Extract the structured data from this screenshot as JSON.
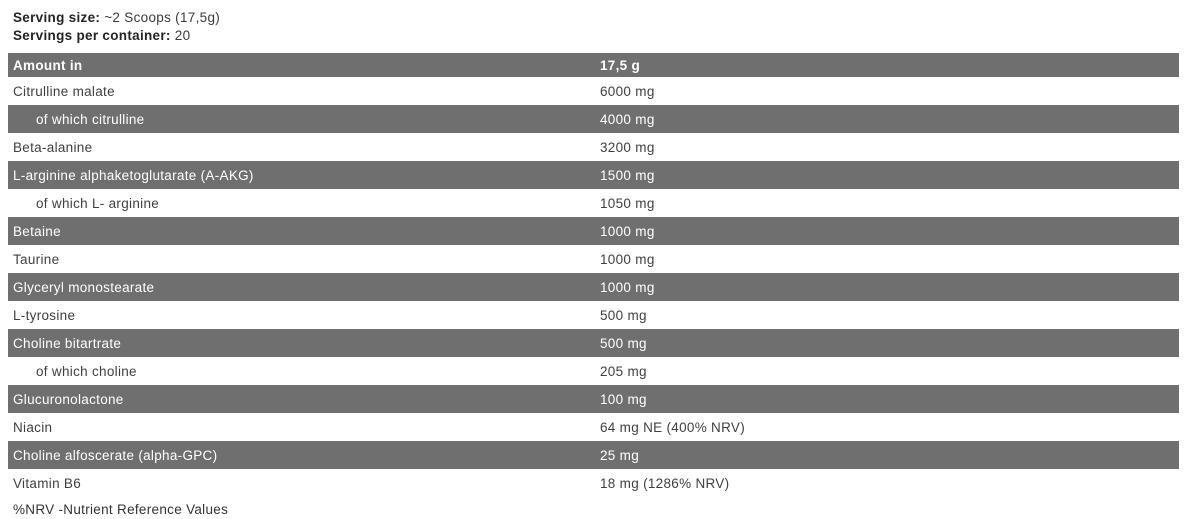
{
  "serving": {
    "serving_size_label": "Serving size:",
    "serving_size_value": "~2 Scoops (17,5g)",
    "servings_per_container_label": "Servings per container:",
    "servings_per_container_value": "20"
  },
  "table": {
    "header": {
      "label": "Amount in",
      "value": "17,5 g"
    },
    "rows": [
      {
        "label": "Citrulline malate",
        "value": "6000 mg",
        "shaded": false,
        "sub": false
      },
      {
        "label": "of which citrulline",
        "value": "4000 mg",
        "shaded": true,
        "sub": true
      },
      {
        "label": "Beta-alanine",
        "value": "3200 mg",
        "shaded": false,
        "sub": false
      },
      {
        "label": "L-arginine alphaketoglutarate (A-AKG)",
        "value": "1500 mg",
        "shaded": true,
        "sub": false
      },
      {
        "label": "of which L- arginine",
        "value": "1050 mg",
        "shaded": false,
        "sub": true
      },
      {
        "label": "Betaine",
        "value": "1000 mg",
        "shaded": true,
        "sub": false
      },
      {
        "label": "Taurine",
        "value": "1000 mg",
        "shaded": false,
        "sub": false
      },
      {
        "label": "Glyceryl monostearate",
        "value": "1000 mg",
        "shaded": true,
        "sub": false
      },
      {
        "label": "L-tyrosine",
        "value": "500 mg",
        "shaded": false,
        "sub": false
      },
      {
        "label": "Choline bitartrate",
        "value": "500 mg",
        "shaded": true,
        "sub": false
      },
      {
        "label": "of which choline",
        "value": "205 mg",
        "shaded": false,
        "sub": true
      },
      {
        "label": "Glucuronolactone",
        "value": "100 mg",
        "shaded": true,
        "sub": false
      },
      {
        "label": "Niacin",
        "value": "64 mg NE (400% NRV)",
        "shaded": false,
        "sub": false
      },
      {
        "label": "Choline alfoscerate (alpha-GPC)",
        "value": "25 mg",
        "shaded": true,
        "sub": false
      },
      {
        "label": "Vitamin B6",
        "value": "18 mg (1286% NRV)",
        "shaded": false,
        "sub": false
      }
    ]
  },
  "footer": {
    "note": "%NRV -Nutrient Reference Values"
  },
  "colors": {
    "row_shaded_bg": "#6f6f6f",
    "row_text_dark": "#3f3f3f",
    "row_text_light": "#ffffff"
  }
}
